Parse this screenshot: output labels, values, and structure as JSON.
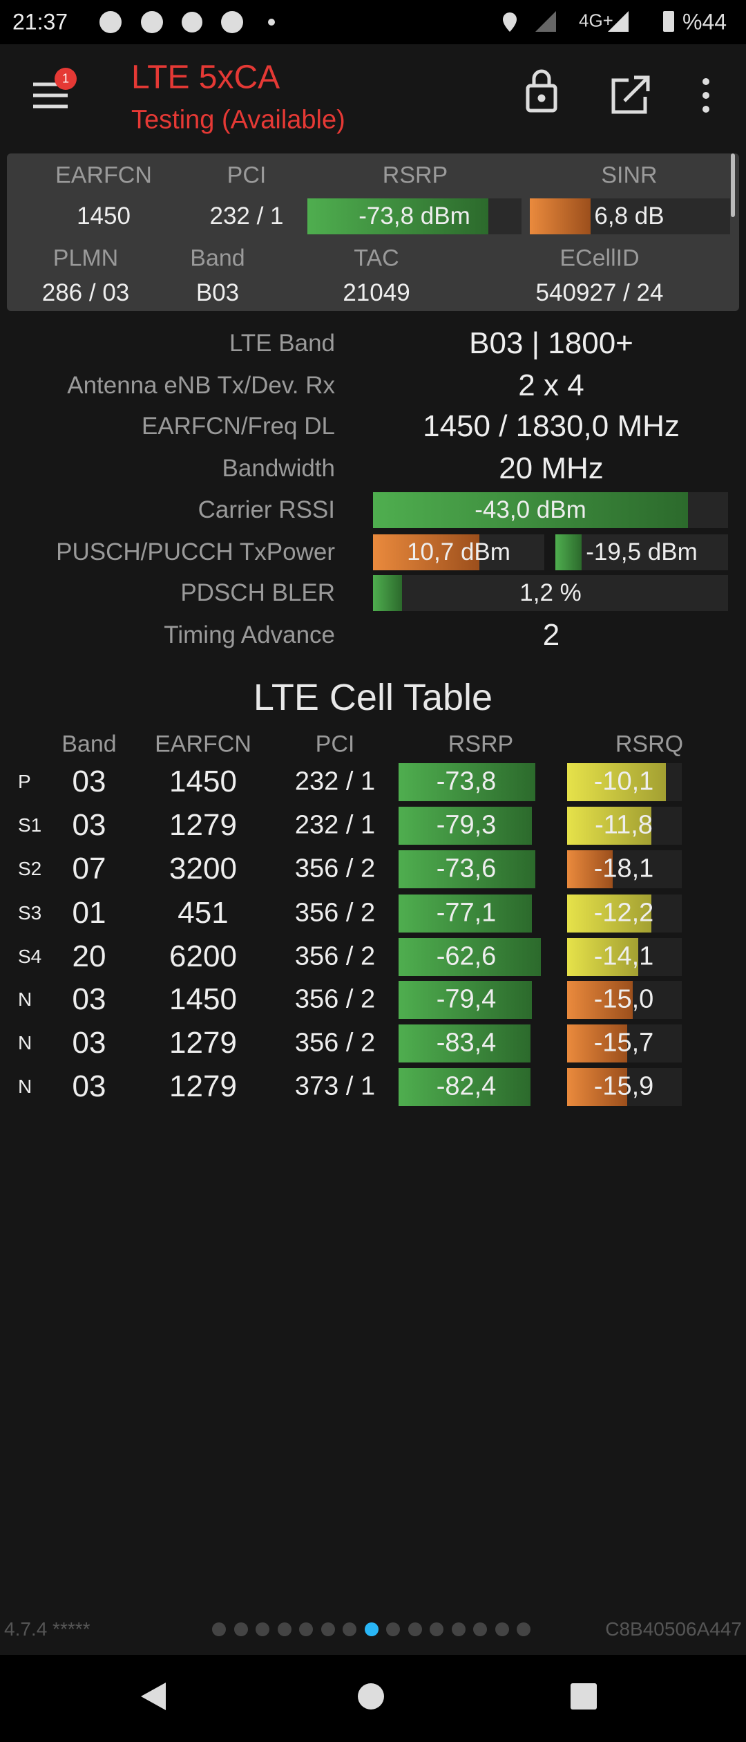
{
  "status_bar": {
    "time": "21:37",
    "network": "4G+",
    "battery": "%44"
  },
  "app_bar": {
    "title": "LTE 5xCA",
    "subtitle": "Testing (Available)",
    "badge": "1"
  },
  "summary": {
    "headers1": [
      "EARFCN",
      "PCI",
      "RSRP",
      "SINR"
    ],
    "values1": [
      "1450",
      "232 / 1",
      "-73,8 dBm",
      "6,8 dB"
    ],
    "headers2": [
      "PLMN",
      "Band",
      "TAC",
      "ECellID"
    ],
    "values2": [
      "286 / 03",
      "B03",
      "21049",
      "540927 / 24"
    ]
  },
  "details": [
    {
      "label": "LTE Band",
      "values": [
        "B03 | 1800+"
      ]
    },
    {
      "label": "Antenna eNB Tx/Dev. Rx",
      "values": [
        "2 x 4"
      ]
    },
    {
      "label": "EARFCN/Freq DL",
      "values": [
        "1450 / 1830,0 MHz"
      ]
    },
    {
      "label": "Bandwidth",
      "values": [
        "20 MHz"
      ]
    },
    {
      "label": "Carrier RSSI",
      "values": [
        "-43,0 dBm"
      ]
    },
    {
      "label": "PUSCH/PUCCH TxPower",
      "values": [
        "10,7 dBm",
        "-19,5 dBm"
      ]
    },
    {
      "label": "PDSCH BLER",
      "values": [
        "1,2 %"
      ]
    },
    {
      "label": "Timing Advance",
      "values": [
        "2"
      ]
    }
  ],
  "cell_table": {
    "title": "LTE Cell Table",
    "columns": [
      "Band",
      "EARFCN",
      "PCI",
      "RSRP",
      "RSRQ"
    ],
    "rows": [
      [
        "P",
        "03",
        "1450",
        "232 / 1",
        "-73,8",
        "-10,1"
      ],
      [
        "S1",
        "03",
        "1279",
        "232 / 1",
        "-79,3",
        "-11,8"
      ],
      [
        "S2",
        "07",
        "3200",
        "356 / 2",
        "-73,6",
        "-18,1"
      ],
      [
        "S3",
        "01",
        "451",
        "356 / 2",
        "-77,1",
        "-12,2"
      ],
      [
        "S4",
        "20",
        "6200",
        "356 / 2",
        "-62,6",
        "-14,1"
      ],
      [
        "N",
        "03",
        "1450",
        "356 / 2",
        "-79,4",
        "-15,0"
      ],
      [
        "N",
        "03",
        "1279",
        "356 / 2",
        "-83,4",
        "-15,7"
      ],
      [
        "N",
        "03",
        "1279",
        "373 / 1",
        "-82,4",
        "-15,9"
      ]
    ]
  },
  "footer": {
    "version": "4.7.4 *****",
    "id": "C8B40506A447"
  }
}
